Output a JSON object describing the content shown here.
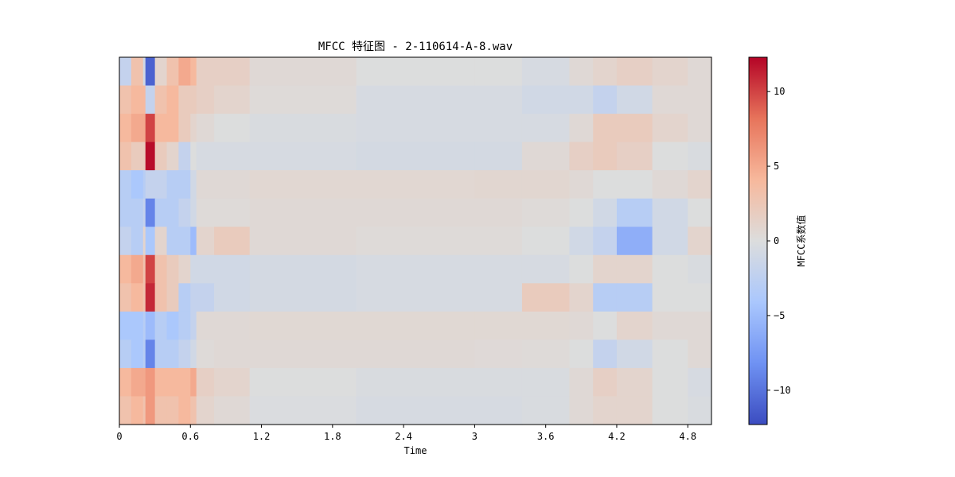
{
  "chart_data": {
    "type": "heatmap",
    "title": "MFCC 特征图 - 2-110614-A-8.wav",
    "xlabel": "Time",
    "ylabel": "",
    "xlim": [
      0,
      5.0
    ],
    "x_ticks": [
      "0",
      "0.6",
      "1.2",
      "1.8",
      "2.4",
      "3",
      "3.6",
      "4.2",
      "4.8"
    ],
    "x_tick_values": [
      0,
      0.6,
      1.2,
      1.8,
      2.4,
      3.0,
      3.6,
      4.2,
      4.8
    ],
    "n_coefficients": 13,
    "time_bins": [
      0.0,
      0.1,
      0.2,
      0.22,
      0.3,
      0.4,
      0.5,
      0.6,
      0.65,
      0.8,
      1.1,
      2.0,
      3.0,
      3.4,
      3.8,
      4.0,
      4.2,
      4.5,
      4.8,
      5.0
    ],
    "values": [
      [
        -2,
        3,
        -1,
        -11,
        1,
        3,
        5,
        4,
        1.5,
        1.5,
        0.5,
        0,
        0,
        -0.5,
        0.5,
        1,
        1.5,
        1,
        0.5,
        0
      ],
      [
        3,
        4,
        4,
        -2,
        3,
        4,
        2,
        2,
        1.5,
        1,
        0.3,
        -0.5,
        -0.5,
        -1,
        -1,
        -2,
        -1,
        0.5,
        0.5,
        1
      ],
      [
        4,
        5,
        5,
        10,
        4,
        4,
        2,
        1,
        0.5,
        0,
        -0.3,
        -0.5,
        -0.5,
        -0.5,
        0.5,
        2,
        2,
        1,
        0.5,
        0
      ],
      [
        3,
        2,
        2,
        12,
        2,
        1,
        -2,
        0,
        -0.5,
        -0.5,
        -0.5,
        -0.7,
        -0.7,
        0.5,
        1.5,
        2,
        1.5,
        0,
        -0.3,
        0
      ],
      [
        -3,
        -4,
        -3,
        -2,
        -2,
        -3,
        -3,
        -1,
        0.5,
        0.5,
        0.7,
        0.7,
        0.8,
        0.8,
        0.5,
        0,
        0,
        0.5,
        1,
        1
      ],
      [
        -3,
        -3,
        -2,
        -9,
        -3,
        -3,
        -2,
        -1,
        0.3,
        0.3,
        0.5,
        0.5,
        0.5,
        0.3,
        0,
        -1,
        -3,
        -1,
        0,
        0.5
      ],
      [
        -2,
        -3,
        1,
        -4,
        1,
        -3,
        -3,
        -5,
        1,
        2,
        0.5,
        0.3,
        0.3,
        0,
        -1,
        -2,
        -6,
        -1,
        1,
        3
      ],
      [
        4,
        5,
        3,
        10,
        3,
        2,
        1,
        -1,
        -1,
        -1,
        -0.7,
        -0.5,
        -0.5,
        -0.5,
        0,
        1,
        1,
        0,
        -0.3,
        0
      ],
      [
        3,
        4,
        3,
        11,
        3,
        2,
        -3,
        -2,
        -2,
        -1,
        -0.7,
        -0.5,
        -0.5,
        2,
        1,
        -3,
        -3,
        0,
        0,
        0
      ],
      [
        -4,
        -4,
        -3,
        -5,
        -3,
        -4,
        -3,
        -2,
        0.5,
        0.5,
        0.6,
        0.6,
        0.6,
        0.6,
        0.5,
        0,
        1,
        0.5,
        0.5,
        0.5
      ],
      [
        -3,
        -4,
        -3,
        -9,
        -3,
        -3,
        -2,
        -1,
        0.3,
        0.5,
        0.5,
        0.5,
        0.4,
        0.3,
        0,
        -2,
        -1,
        0,
        0.5,
        0.5
      ],
      [
        4,
        5,
        5,
        6,
        4,
        4,
        4,
        5,
        1.5,
        1,
        0,
        -0.3,
        -0.3,
        -0.3,
        0.5,
        1.5,
        1,
        0,
        -0.5,
        0
      ],
      [
        3,
        4,
        3,
        6,
        3,
        3,
        4,
        3,
        1,
        0.5,
        -0.2,
        -0.5,
        -0.5,
        -0.3,
        0.5,
        1,
        1,
        0,
        -0.3,
        0
      ]
    ],
    "colormap": "coolwarm",
    "colormap_stops": [
      "#3b4cc0",
      "#6f92f3",
      "#aac7fd",
      "#dcdddd",
      "#f7b89c",
      "#e7745b",
      "#b40426"
    ],
    "colorbar": {
      "label": "MFCC系数值",
      "range": [
        -12.3,
        12.3
      ],
      "ticks": [
        "10",
        "5",
        "0",
        "−5",
        "−10"
      ],
      "tick_values": [
        10,
        5,
        0,
        -5,
        -10
      ]
    },
    "grid": false
  }
}
